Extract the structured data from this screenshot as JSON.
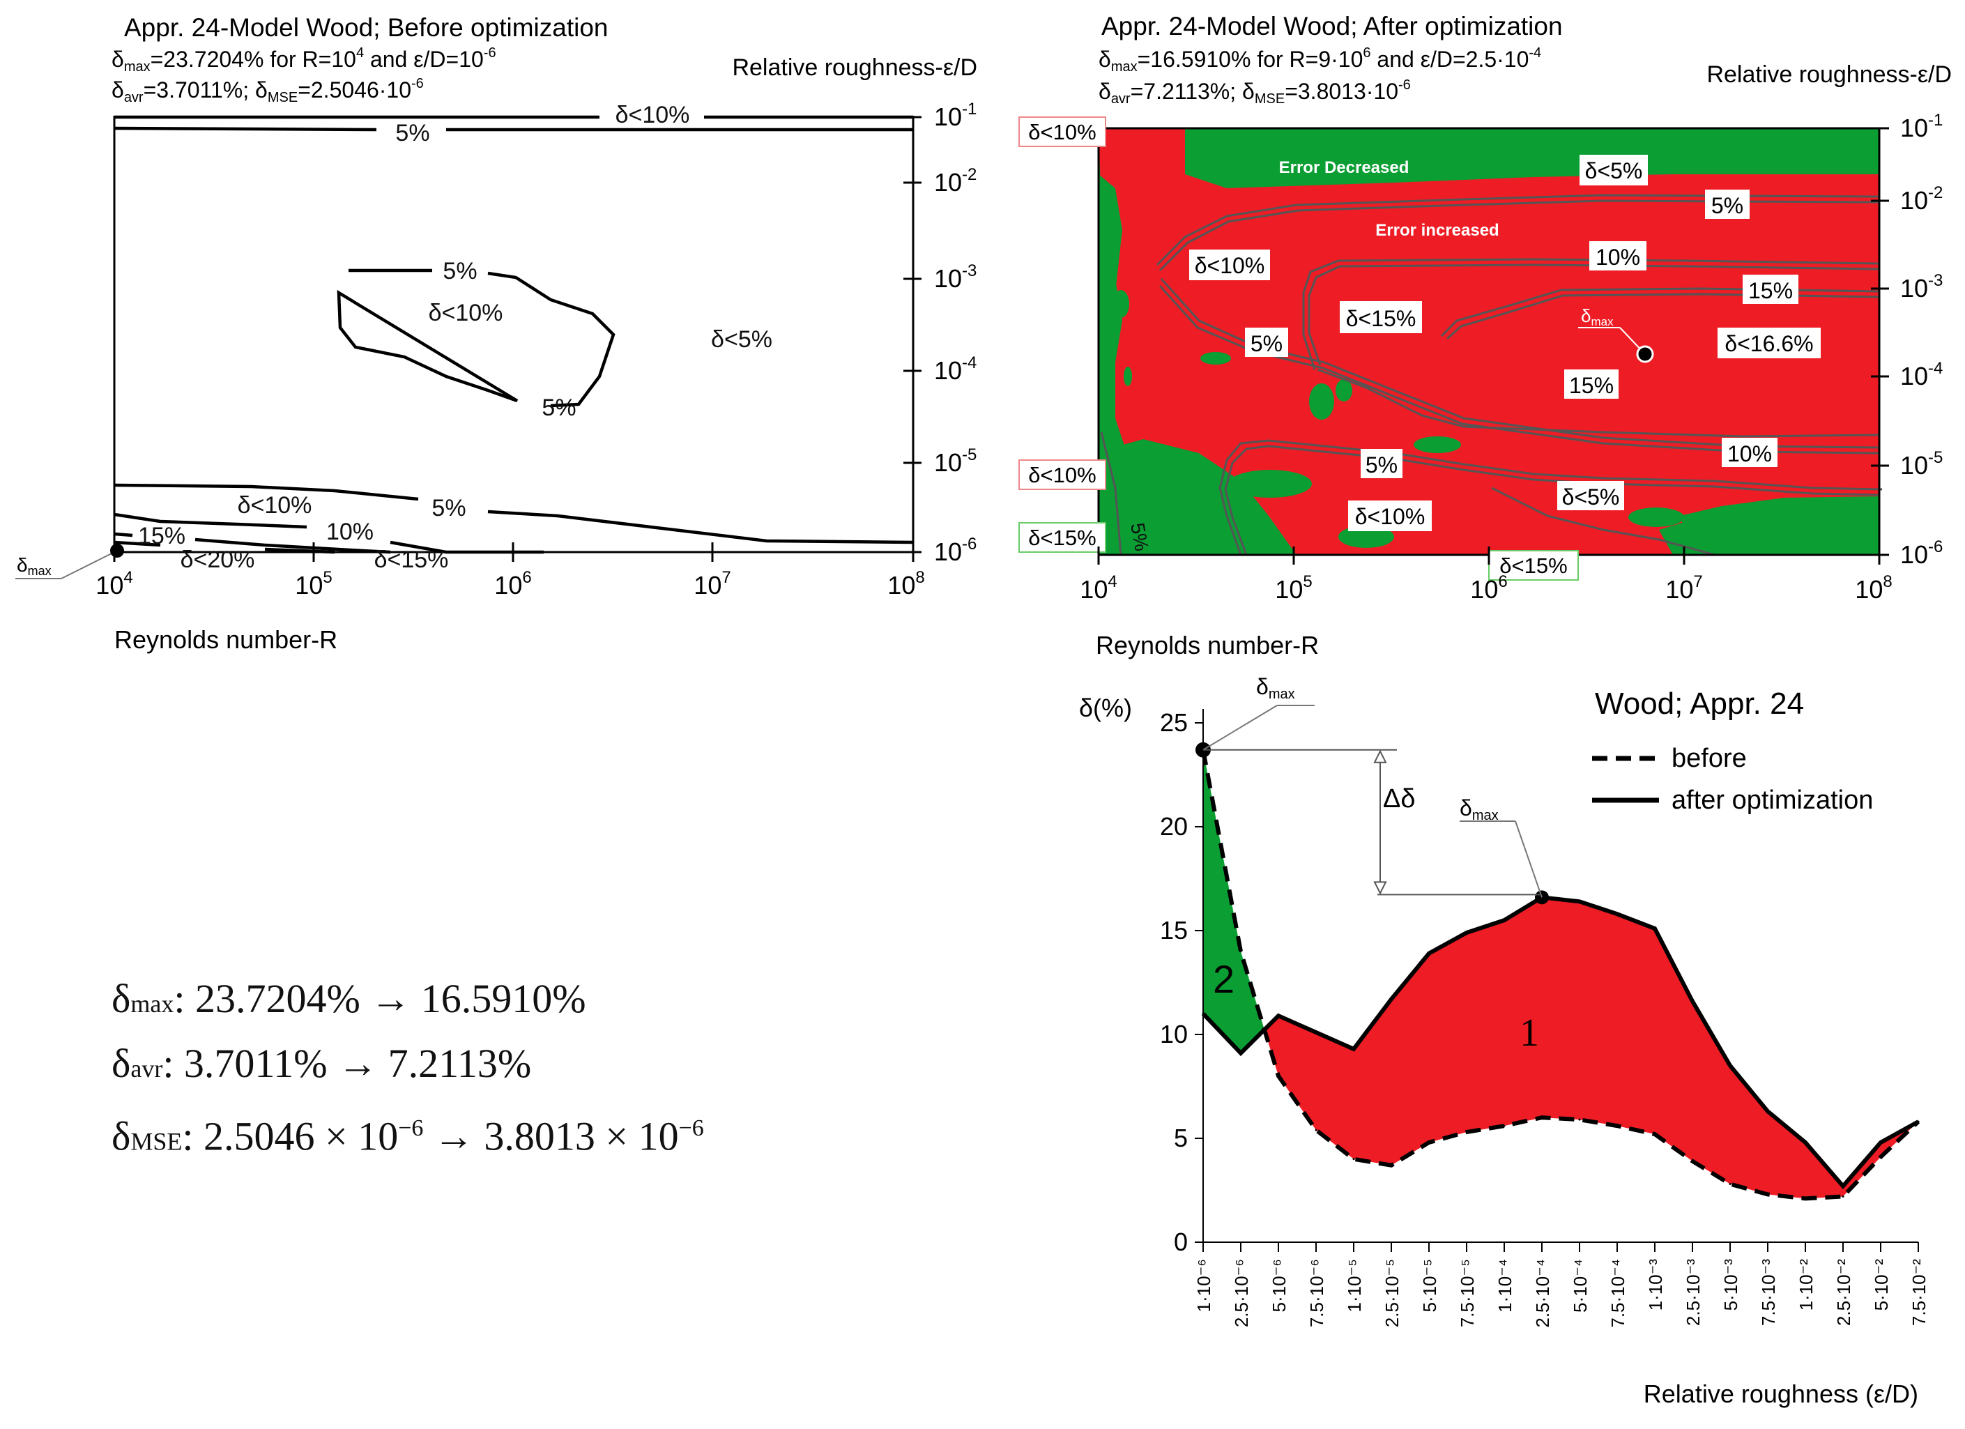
{
  "panel_before": {
    "title": "Appr. 24-Model Wood; Before optimization",
    "dmax_line": {
      "sym": "δ",
      "sub": "max",
      "text": "=23.7204% for R=10",
      "sup": "4",
      "text2": " and ε/D=10",
      "sup2": "-6"
    },
    "davr_line": {
      "sym": "δ",
      "sub1": "avr",
      "text1": "=3.7011%; δ",
      "sub2": "MSE",
      "text2": "=2.5046·10",
      "sup": "-6"
    },
    "x_axis_title": "Reynolds number-R",
    "y_axis_title": "Relative roughness-ε/D",
    "x_ticks": [
      {
        "base": "10",
        "exp": "4"
      },
      {
        "base": "10",
        "exp": "5"
      },
      {
        "base": "10",
        "exp": "6"
      },
      {
        "base": "10",
        "exp": "7"
      },
      {
        "base": "10",
        "exp": "8"
      }
    ],
    "y_ticks": [
      {
        "base": "10",
        "exp": "-1"
      },
      {
        "base": "10",
        "exp": "-2"
      },
      {
        "base": "10",
        "exp": "-3"
      },
      {
        "base": "10",
        "exp": "-4"
      },
      {
        "base": "10",
        "exp": "-5"
      },
      {
        "base": "10",
        "exp": "-6"
      }
    ],
    "labels": [
      "δ<10%",
      "5%",
      "5%",
      "δ<10%",
      "δ<5%",
      "5%",
      "δ<10%",
      "5%",
      "15%",
      "10%",
      "δ<20%",
      "δ<15%"
    ],
    "marker_label": {
      "sym": "δ",
      "sub": "max"
    }
  },
  "panel_after": {
    "title": "Appr. 24-Model Wood; After optimization",
    "dmax_line": {
      "sym": "δ",
      "sub": "max",
      "text": "=16.5910% for R=9·10",
      "sup": "6",
      "text2": " and ε/D=2.5·10",
      "sup2": "-4"
    },
    "davr_line": {
      "sym": "δ",
      "sub1": "avr",
      "text1": "=7.2113%; δ",
      "sub2": "MSE",
      "text2": "=3.8013·10",
      "sup": "-6"
    },
    "x_axis_title": "Reynolds number-R",
    "y_axis_title": "Relative roughness-ε/D",
    "x_ticks": [
      {
        "base": "10",
        "exp": "4"
      },
      {
        "base": "10",
        "exp": "5"
      },
      {
        "base": "10",
        "exp": "6"
      },
      {
        "base": "10",
        "exp": "7"
      },
      {
        "base": "10",
        "exp": "8"
      }
    ],
    "y_ticks": [
      {
        "base": "10",
        "exp": "-1"
      },
      {
        "base": "10",
        "exp": "-2"
      },
      {
        "base": "10",
        "exp": "-3"
      },
      {
        "base": "10",
        "exp": "-4"
      },
      {
        "base": "10",
        "exp": "-5"
      },
      {
        "base": "10",
        "exp": "-6"
      }
    ],
    "region_labels": [
      "Error Decreased",
      "Error increased"
    ],
    "boxed_labels": [
      "δ<5%",
      "5%",
      "δ<10%",
      "10%",
      "15%",
      "δ<15%",
      "5%",
      "δ<16.6%",
      "15%",
      "10%",
      "5%",
      "δ<5%",
      "δ<10%"
    ],
    "edge_labels": [
      "δ<10%",
      "δ<10%",
      "δ<15%",
      "δ<15%"
    ],
    "vertical_label": "5%",
    "marker_label": {
      "sym": "δ",
      "sub": "max"
    }
  },
  "colors": {
    "increased": "#ee1c25",
    "decreased": "#0b9e33",
    "contour": "#555555",
    "text": "#111111"
  },
  "chart_data": [
    {
      "type": "heatmap",
      "title": "Appr. 24-Model Wood; Before optimization",
      "xlabel": "Reynolds number-R",
      "ylabel": "Relative roughness-ε/D",
      "x_scale": "log",
      "xlim": [
        10000,
        100000000
      ],
      "y_scale": "log",
      "ylim": [
        1e-06,
        0.1
      ],
      "max_error_percent": 23.7204,
      "max_at": {
        "R": 10000,
        "eps_D": 1e-06
      },
      "avr_error_percent": 3.7011,
      "mse": 2.5046e-06,
      "contours_percent": [
        5,
        10,
        15,
        20
      ]
    },
    {
      "type": "heatmap",
      "title": "Appr. 24-Model Wood; After optimization",
      "xlabel": "Reynolds number-R",
      "ylabel": "Relative roughness-ε/D",
      "x_scale": "log",
      "xlim": [
        10000,
        100000000
      ],
      "y_scale": "log",
      "ylim": [
        1e-06,
        0.1
      ],
      "max_error_percent": 16.591,
      "max_at": {
        "R": 9000000,
        "eps_D": 0.00025
      },
      "avr_error_percent": 7.2113,
      "mse": 3.8013e-06,
      "contours_percent": [
        5,
        10,
        15,
        16.6
      ],
      "legend": [
        "Error Decreased",
        "Error increased"
      ]
    },
    {
      "type": "line",
      "title": "Wood; Appr. 24",
      "ylabel": "δ(%)",
      "xlabel": "Relative roughness (ε/D)",
      "ylim": [
        0,
        25
      ],
      "y_ticks": [
        0,
        5,
        10,
        15,
        20,
        25
      ],
      "categories": [
        "1·10⁻⁶",
        "2.5·10⁻⁶",
        "5·10⁻⁶",
        "7.5·10⁻⁶",
        "1·10⁻⁵",
        "2.5·10⁻⁵",
        "5·10⁻⁵",
        "7.5·10⁻⁵",
        "1·10⁻⁴",
        "2.5·10⁻⁴",
        "5·10⁻⁴",
        "7.5·10⁻⁴",
        "1·10⁻³",
        "2.5·10⁻³",
        "5·10⁻³",
        "7.5·10⁻³",
        "1·10⁻²",
        "2.5·10⁻²",
        "5·10⁻²",
        "7.5·10⁻²"
      ],
      "series": [
        {
          "name": "before",
          "style": "dashed",
          "values": [
            23.7,
            14.0,
            8.0,
            5.4,
            4.0,
            3.7,
            4.8,
            5.3,
            5.6,
            6.0,
            5.9,
            5.6,
            5.2,
            3.9,
            2.8,
            2.3,
            2.1,
            2.2,
            4.1,
            5.8
          ]
        },
        {
          "name": "after optimization",
          "style": "solid",
          "values": [
            11.0,
            9.1,
            10.9,
            10.1,
            9.3,
            11.7,
            13.9,
            14.9,
            15.5,
            16.6,
            16.4,
            15.8,
            15.1,
            11.6,
            8.5,
            6.3,
            4.8,
            2.7,
            4.8,
            5.8
          ]
        }
      ],
      "legend": [
        "before",
        "after optimization"
      ],
      "legend_position": "top-right",
      "region_labels": [
        "1",
        "2"
      ],
      "delta_label": "Δδ",
      "max_labels": [
        {
          "sym": "δ",
          "sub": "max"
        },
        {
          "sym": "δ",
          "sub": "max"
        }
      ]
    }
  ],
  "summary": [
    {
      "sym": "δ",
      "sub": "max",
      "text": ": 23.7204% → 16.5910%"
    },
    {
      "sym": "δ",
      "sub": "avr",
      "text": ": 3.7011% → 7.2113%"
    },
    {
      "sym": "δ",
      "sub": "MSE",
      "text": ": 2.5046 × 10",
      "sup1": "−6",
      "text2": " → 3.8013 × 10",
      "sup2": "−6"
    }
  ]
}
